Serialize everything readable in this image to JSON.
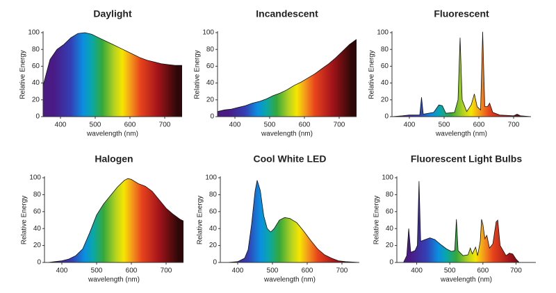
{
  "chart_data": [
    {
      "type": "area",
      "title": "Daylight",
      "x_label": "wavelength (nm)",
      "y_label": "Relative Energy",
      "x": [
        350,
        370,
        390,
        410,
        430,
        450,
        470,
        490,
        510,
        530,
        550,
        570,
        590,
        610,
        630,
        650,
        670,
        690,
        710,
        730,
        750
      ],
      "values": [
        37,
        68,
        80,
        86,
        94,
        99,
        100,
        98,
        94,
        90,
        86,
        82,
        78,
        74,
        70,
        67,
        65,
        63,
        62,
        61,
        61
      ],
      "xlim": [
        350,
        750
      ],
      "ylim": [
        0,
        100
      ],
      "xticks": [
        400,
        500,
        600,
        700
      ],
      "yticks": [
        0,
        20,
        40,
        60,
        80,
        100
      ]
    },
    {
      "type": "area",
      "title": "Incandescent",
      "x_label": "wavelength (nm)",
      "y_label": "Relative Energy",
      "x": [
        350,
        370,
        390,
        410,
        430,
        450,
        470,
        490,
        510,
        530,
        550,
        570,
        590,
        610,
        630,
        650,
        670,
        690,
        710,
        730,
        750
      ],
      "values": [
        6,
        8,
        9,
        11,
        13,
        16,
        18,
        21,
        25,
        28,
        32,
        37,
        41,
        46,
        51,
        57,
        63,
        70,
        78,
        86,
        92
      ],
      "xlim": [
        350,
        750
      ],
      "ylim": [
        0,
        100
      ],
      "xticks": [
        400,
        500,
        600,
        700
      ],
      "yticks": [
        0,
        20,
        40,
        60,
        80,
        100
      ]
    },
    {
      "type": "area",
      "title": "Fluorescent",
      "x_label": "wavelength (nm)",
      "y_label": "Relative Energy",
      "x": [
        350,
        380,
        400,
        430,
        435,
        440,
        470,
        485,
        495,
        505,
        530,
        540,
        546,
        552,
        565,
        578,
        587,
        595,
        605,
        611,
        617,
        625,
        631,
        640,
        660,
        700,
        710,
        720,
        750
      ],
      "values": [
        0,
        1,
        2,
        2,
        23,
        3,
        5,
        14,
        13,
        4,
        5,
        20,
        94,
        20,
        6,
        14,
        27,
        12,
        8,
        101,
        12,
        12,
        16,
        5,
        2,
        1,
        3,
        1,
        0
      ],
      "xlim": [
        350,
        750
      ],
      "ylim": [
        0,
        100
      ],
      "xticks": [
        400,
        500,
        600,
        700
      ],
      "yticks": [
        0,
        20,
        40,
        60,
        80,
        100
      ]
    },
    {
      "type": "area",
      "title": "Halogen",
      "x_label": "wavelength (nm)",
      "y_label": "Relative Energy",
      "x": [
        360,
        380,
        400,
        420,
        440,
        460,
        480,
        500,
        520,
        540,
        560,
        580,
        590,
        600,
        620,
        640,
        660,
        680,
        700,
        720,
        740,
        750
      ],
      "values": [
        0,
        1,
        2,
        4,
        8,
        16,
        35,
        56,
        69,
        79,
        89,
        97,
        99,
        98,
        93,
        90,
        84,
        74,
        64,
        57,
        51,
        49
      ],
      "xlim": [
        350,
        750
      ],
      "ylim": [
        0,
        100
      ],
      "xticks": [
        400,
        500,
        600,
        700
      ],
      "yticks": [
        0,
        20,
        40,
        60,
        80,
        100
      ]
    },
    {
      "type": "area",
      "title": "Cool White LED",
      "x_label": "wavelength (nm)",
      "y_label": "Relative Energy",
      "x": [
        370,
        400,
        420,
        430,
        440,
        450,
        456,
        465,
        475,
        485,
        495,
        505,
        520,
        535,
        550,
        570,
        590,
        610,
        630,
        650,
        670,
        690,
        710,
        750
      ],
      "values": [
        0,
        1,
        5,
        15,
        45,
        84,
        97,
        85,
        55,
        40,
        36,
        40,
        50,
        53,
        52,
        47,
        37,
        26,
        16,
        9,
        5,
        2,
        1,
        0
      ],
      "xlim": [
        350,
        750
      ],
      "ylim": [
        0,
        100
      ],
      "xticks": [
        400,
        500,
        600,
        700
      ],
      "yticks": [
        0,
        20,
        40,
        60,
        80,
        100
      ]
    },
    {
      "type": "area",
      "title": "Fluorescent Light Bulbs",
      "x_label": "wavelength (nm)",
      "y_label": "Relative Energy",
      "x": [
        360,
        370,
        376,
        382,
        395,
        402,
        407,
        412,
        425,
        440,
        455,
        470,
        490,
        505,
        515,
        520,
        525,
        540,
        555,
        562,
        568,
        578,
        584,
        592,
        596,
        600,
        606,
        612,
        620,
        630,
        640,
        645,
        652,
        670,
        680,
        690,
        700,
        710
      ],
      "values": [
        0,
        8,
        40,
        12,
        14,
        20,
        96,
        25,
        27,
        29,
        27,
        22,
        16,
        13,
        14,
        51,
        14,
        8,
        9,
        17,
        10,
        18,
        8,
        25,
        51,
        45,
        28,
        32,
        17,
        22,
        48,
        50,
        20,
        8,
        11,
        10,
        4,
        0
      ],
      "xlim": [
        340,
        760
      ],
      "ylim": [
        0,
        100
      ],
      "xticks": [
        400,
        500,
        600,
        700
      ],
      "yticks": [
        0,
        20,
        40,
        60,
        80,
        100
      ]
    }
  ]
}
